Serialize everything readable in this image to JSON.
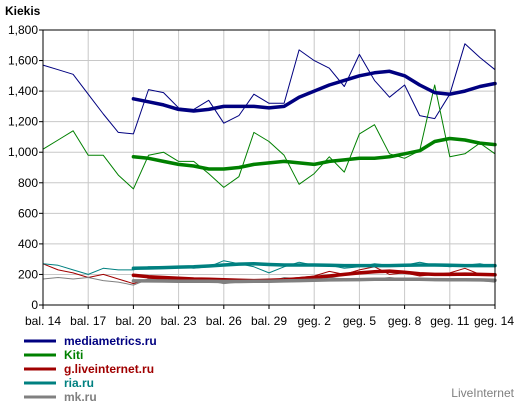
{
  "chart_data": {
    "type": "line",
    "title": "Kiekis",
    "watermark": "LiveInternet",
    "ylim": [
      0,
      1800
    ],
    "yticks": [
      "0",
      "200",
      "400",
      "600",
      "800",
      "1,000",
      "1,200",
      "1,400",
      "1,600",
      "1,800"
    ],
    "x_tick_labels": [
      "bal. 14",
      "bal. 17",
      "bal. 20",
      "bal. 23",
      "bal. 26",
      "bal. 29",
      "geg. 2",
      "geg. 5",
      "geg. 8",
      "geg. 11",
      "geg. 14"
    ],
    "x_tick_index": [
      0,
      3,
      6,
      9,
      12,
      15,
      18,
      21,
      24,
      27,
      30
    ],
    "grid": true,
    "legend_position": "bottom-left",
    "series": [
      {
        "name": "mediametrics.ru",
        "color": "#000080",
        "daily": [
          1570,
          1540,
          1510,
          1380,
          1250,
          1130,
          1120,
          1410,
          1390,
          1290,
          1280,
          1340,
          1190,
          1240,
          1380,
          1320,
          1320,
          1670,
          1600,
          1550,
          1430,
          1640,
          1470,
          1360,
          1440,
          1240,
          1220,
          1380,
          1710,
          1620,
          1540
        ],
        "average": [
          null,
          null,
          null,
          null,
          null,
          null,
          1350,
          1330,
          1310,
          1280,
          1270,
          1280,
          1300,
          1300,
          1300,
          1290,
          1300,
          1360,
          1400,
          1440,
          1470,
          1500,
          1520,
          1530,
          1500,
          1440,
          1390,
          1380,
          1400,
          1430,
          1450
        ]
      },
      {
        "name": "Kiti",
        "color": "#008000",
        "daily": [
          1020,
          1080,
          1140,
          980,
          980,
          850,
          760,
          980,
          1000,
          940,
          940,
          860,
          770,
          840,
          1130,
          1070,
          980,
          790,
          860,
          970,
          870,
          1120,
          1180,
          990,
          960,
          1010,
          1440,
          970,
          990,
          1060,
          990
        ],
        "average": [
          null,
          null,
          null,
          null,
          null,
          null,
          970,
          960,
          940,
          920,
          910,
          890,
          890,
          900,
          920,
          930,
          940,
          930,
          920,
          940,
          950,
          960,
          960,
          970,
          990,
          1010,
          1070,
          1090,
          1080,
          1060,
          1050
        ]
      },
      {
        "name": "g.liveinternet.ru",
        "color": "#a00000",
        "daily": [
          270,
          230,
          210,
          180,
          200,
          170,
          140,
          170,
          170,
          150,
          160,
          170,
          150,
          160,
          160,
          150,
          170,
          180,
          190,
          220,
          200,
          230,
          250,
          200,
          210,
          190,
          200,
          210,
          240,
          200,
          200
        ],
        "average": [
          null,
          null,
          null,
          null,
          null,
          null,
          195,
          185,
          180,
          175,
          170,
          168,
          165,
          162,
          160,
          162,
          165,
          172,
          180,
          190,
          200,
          210,
          218,
          222,
          215,
          205,
          200,
          200,
          202,
          200,
          198
        ]
      },
      {
        "name": "ria.ru",
        "color": "#008080",
        "daily": [
          270,
          260,
          230,
          200,
          240,
          230,
          230,
          250,
          250,
          250,
          240,
          250,
          290,
          270,
          250,
          210,
          250,
          280,
          260,
          260,
          240,
          250,
          270,
          260,
          260,
          280,
          260,
          250,
          260,
          270,
          250
        ],
        "average": [
          null,
          null,
          null,
          null,
          null,
          null,
          240,
          242,
          245,
          248,
          250,
          255,
          262,
          268,
          270,
          265,
          262,
          262,
          262,
          260,
          258,
          258,
          258,
          258,
          260,
          262,
          262,
          260,
          258,
          258,
          258
        ]
      },
      {
        "name": "mk.ru",
        "color": "#808080",
        "daily": [
          170,
          180,
          170,
          180,
          160,
          150,
          130,
          170,
          160,
          160,
          150,
          160,
          140,
          150,
          150,
          150,
          180,
          170,
          160,
          180,
          170,
          160,
          170,
          180,
          170,
          170,
          160,
          160,
          170,
          160,
          150
        ],
        "average": [
          null,
          null,
          null,
          null,
          null,
          null,
          158,
          158,
          157,
          156,
          155,
          155,
          154,
          154,
          155,
          156,
          158,
          160,
          162,
          164,
          165,
          166,
          168,
          169,
          168,
          168,
          166,
          165,
          165,
          164,
          162
        ]
      }
    ]
  }
}
